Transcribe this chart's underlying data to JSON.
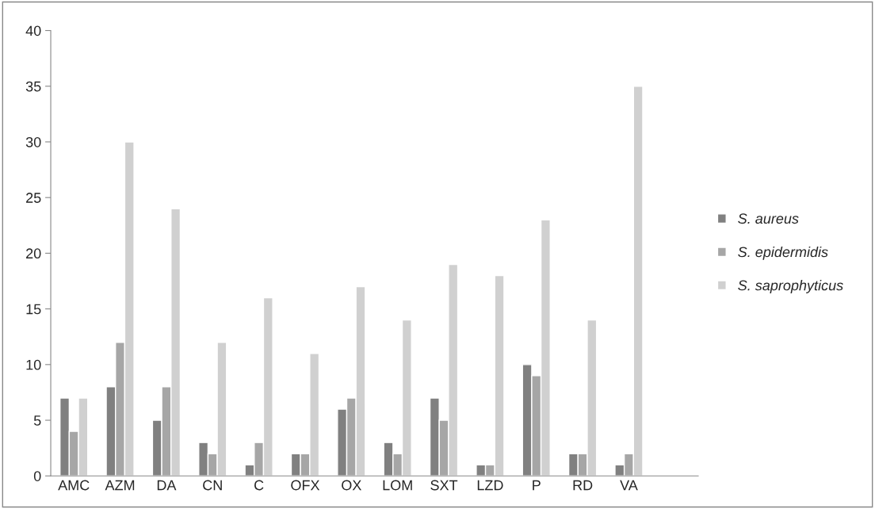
{
  "chart_data": {
    "type": "bar",
    "categories": [
      "AMC",
      "AZM",
      "DA",
      "CN",
      "C",
      "OFX",
      "OX",
      "LOM",
      "SXT",
      "LZD",
      "P",
      "RD",
      "VA",
      null
    ],
    "series": [
      {
        "name": "S. aureus",
        "color": "#808080",
        "values": [
          7,
          8,
          5,
          3,
          1,
          2,
          6,
          3,
          7,
          1,
          10,
          2,
          1,
          null
        ]
      },
      {
        "name": "S. epidermidis",
        "color": "#a6a6a6",
        "values": [
          4,
          12,
          8,
          2,
          3,
          2,
          7,
          2,
          5,
          1,
          9,
          2,
          2,
          null
        ]
      },
      {
        "name": "S. saprophyticus",
        "color": "#d0d0d0",
        "values": [
          7,
          30,
          24,
          12,
          16,
          11,
          17,
          14,
          19,
          18,
          23,
          14,
          35,
          null
        ]
      }
    ],
    "ylim": [
      0,
      40
    ],
    "yticks": [
      0,
      5,
      10,
      15,
      20,
      25,
      30,
      35,
      40
    ],
    "grid": false,
    "legend": "right"
  }
}
